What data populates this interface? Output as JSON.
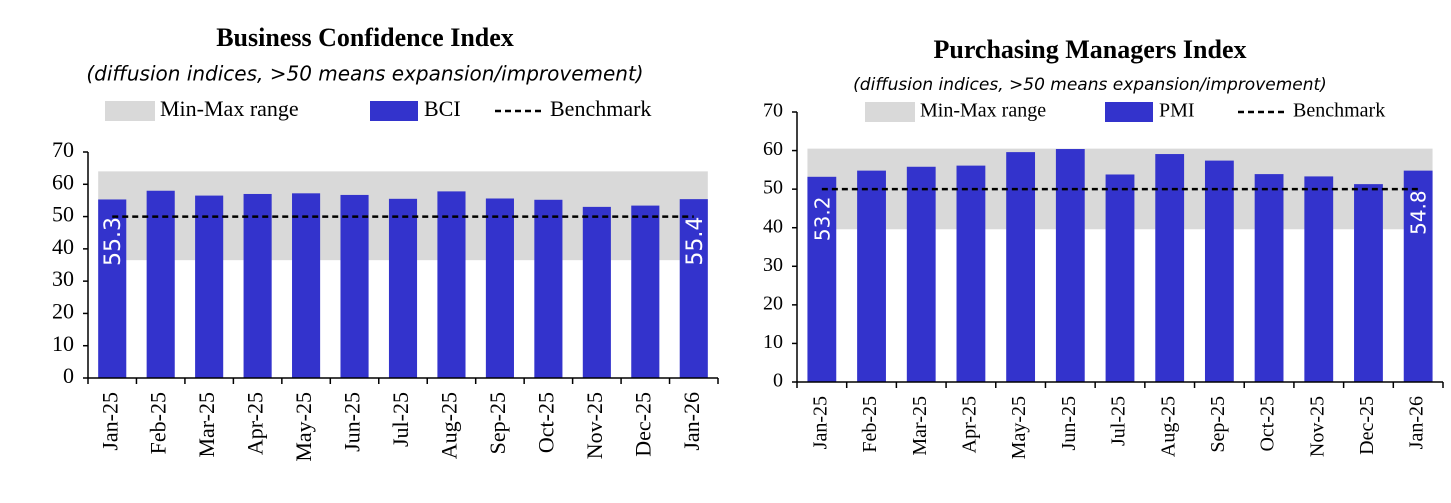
{
  "chart_data": [
    {
      "type": "bar",
      "title": "Business Confidence Index",
      "subtitle": "(diffusion indices, >50 means expansion/improvement)",
      "categories": [
        "Jan-25",
        "Feb-25",
        "Mar-25",
        "Apr-25",
        "May-25",
        "Jun-25",
        "Jul-25",
        "Aug-25",
        "Sep-25",
        "Oct-25",
        "Nov-25",
        "Dec-25",
        "Jan-26"
      ],
      "series": [
        {
          "name": "BCI",
          "color": "#3333cc",
          "values": [
            55.3,
            58,
            56.5,
            57,
            57.2,
            56.7,
            55.5,
            57.8,
            55.6,
            55.2,
            53,
            53.4,
            55.4
          ]
        }
      ],
      "range": {
        "name": "Min-Max range",
        "color": "#d9d9d9",
        "values": [
          36.5,
          64
        ]
      },
      "benchmark": {
        "name": "Benchmark",
        "value": 50
      },
      "ylim": [
        0,
        70
      ],
      "yticks": [
        0,
        10,
        20,
        30,
        40,
        50,
        60,
        70
      ]
    },
    {
      "type": "bar",
      "title": "Purchasing Managers Index",
      "subtitle": "(diffusion indices, >50 means expansion/improvement)",
      "categories": [
        "Jan-25",
        "Feb-25",
        "Mar-25",
        "Apr-25",
        "May-25",
        "Jun-25",
        "Jul-25",
        "Aug-25",
        "Sep-25",
        "Oct-25",
        "Nov-25",
        "Dec-25",
        "Jan-26"
      ],
      "series": [
        {
          "name": "PMI",
          "color": "#3333cc",
          "values": [
            53.2,
            54.8,
            55.8,
            56.1,
            59.6,
            60.4,
            53.8,
            59.1,
            57.4,
            53.9,
            53.3,
            51.3,
            54.8
          ]
        }
      ],
      "range": {
        "name": "Min-Max range",
        "color": "#d9d9d9",
        "values": [
          39.6,
          60.5
        ]
      },
      "benchmark": {
        "name": "Benchmark",
        "value": 50
      },
      "ylim": [
        0,
        70
      ],
      "yticks": [
        0,
        10,
        20,
        30,
        40,
        50,
        60,
        70
      ]
    }
  ]
}
